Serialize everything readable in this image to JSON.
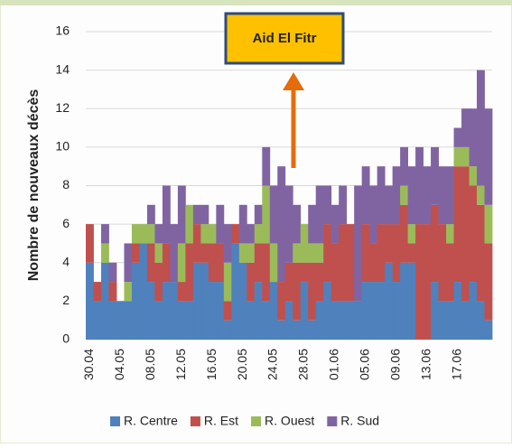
{
  "chart_data": {
    "type": "bar",
    "stacked": true,
    "ylabel": "Nombre de nouveaux décès",
    "annotation": "Aid El Fitr",
    "categories": [
      "30.04",
      null,
      null,
      null,
      "04.05",
      null,
      null,
      null,
      "08.05",
      null,
      null,
      null,
      "12.05",
      null,
      null,
      null,
      "16.05",
      null,
      null,
      null,
      "20.05",
      null,
      null,
      null,
      "24.05",
      null,
      null,
      null,
      "28.05",
      null,
      null,
      null,
      "01.06",
      null,
      null,
      null,
      "05.06",
      null,
      null,
      null,
      "09.06",
      null,
      null,
      null,
      "13.06",
      null,
      null,
      null,
      "17.06",
      null,
      null,
      null,
      null
    ],
    "series": [
      {
        "name": "R. Centre",
        "color": "#4f81bd",
        "values": [
          4,
          2,
          4,
          2,
          2,
          2,
          4,
          5,
          3,
          2,
          3,
          3,
          2,
          2,
          4,
          4,
          3,
          3,
          1,
          5,
          4,
          2,
          3,
          2,
          3,
          1,
          2,
          1,
          3,
          1,
          2,
          3,
          2,
          2,
          2,
          2,
          3,
          3,
          3,
          4,
          3,
          4,
          4,
          0,
          0,
          3,
          2,
          2,
          3,
          2,
          3,
          2,
          1
        ]
      },
      {
        "name": "R. Est",
        "color": "#c0504d",
        "values": [
          2,
          1,
          0,
          1,
          0,
          0,
          1,
          0,
          2,
          2,
          2,
          0,
          1,
          3,
          2,
          1,
          2,
          2,
          1,
          1,
          0,
          2,
          2,
          3,
          0,
          2,
          2,
          3,
          1,
          3,
          2,
          3,
          3,
          4,
          4,
          0,
          3,
          2,
          3,
          2,
          3,
          3,
          1,
          6,
          6,
          4,
          4,
          3,
          6,
          7,
          5,
          5,
          4
        ]
      },
      {
        "name": "R. Ouest",
        "color": "#9bbb59",
        "values": [
          0,
          0,
          1,
          0,
          0,
          1,
          1,
          1,
          1,
          1,
          0,
          0,
          2,
          2,
          0,
          1,
          1,
          0,
          2,
          0,
          1,
          1,
          1,
          3,
          2,
          0,
          0,
          1,
          2,
          1,
          1,
          0,
          0,
          0,
          0,
          0,
          0,
          0,
          0,
          0,
          0,
          1,
          1,
          0,
          0,
          0,
          0,
          1,
          1,
          1,
          1,
          1,
          2
        ]
      },
      {
        "name": "R. Sud",
        "color": "#8064a2",
        "values": [
          0,
          0,
          1,
          1,
          0,
          2,
          0,
          0,
          1,
          1,
          3,
          3,
          3,
          0,
          1,
          1,
          0,
          2,
          2,
          0,
          2,
          1,
          1,
          2,
          3,
          6,
          4,
          2,
          0,
          2,
          3,
          2,
          2,
          2,
          0,
          6,
          3,
          3,
          3,
          2,
          3,
          2,
          3,
          4,
          3,
          3,
          3,
          3,
          1,
          2,
          3,
          6,
          5
        ]
      }
    ],
    "ylim": [
      0,
      16
    ],
    "yticks": [
      0,
      2,
      4,
      6,
      8,
      10,
      12,
      14,
      16
    ],
    "grid": true
  }
}
